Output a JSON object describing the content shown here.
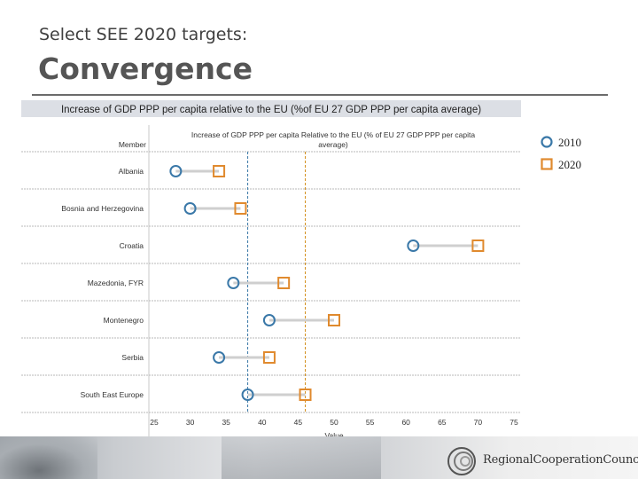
{
  "slide": {
    "subtitle": "Select SEE 2020 targets:",
    "title": "Convergence"
  },
  "chart_data": {
    "type": "dot-plot",
    "title": "Increase of GDP PPP per capita relative to the EU (%of EU 27 GDP PPP per capita average)",
    "column_headers": {
      "row_header": "Member",
      "measure_header_line1": "Increase of GDP PPP per capita Relative to the EU (% of EU 27 GDP PPP per capita",
      "measure_header_line2": "average)"
    },
    "categories": [
      "Albania",
      "Bosnia and Herzegovina",
      "Croatia",
      "Mazedonia, FYR",
      "Montenegro",
      "Serbia",
      "South East Europe"
    ],
    "series": [
      {
        "name": "2010",
        "marker": "circle",
        "color": "#3a78a8",
        "values": [
          28,
          30,
          61,
          36,
          41,
          34,
          38
        ]
      },
      {
        "name": "2020",
        "marker": "square",
        "color": "#e08a2e",
        "values": [
          34,
          37,
          70,
          43,
          50,
          41,
          46
        ]
      }
    ],
    "reference_lines": [
      {
        "value": 38,
        "color": "#3a78a8",
        "style": "dashed"
      },
      {
        "value": 46,
        "color": "#d4901e",
        "style": "dashed"
      }
    ],
    "xlabel": "Value",
    "xlim": [
      25,
      75
    ],
    "xticks": [
      "25",
      "30",
      "35",
      "40",
      "45",
      "50",
      "55",
      "60",
      "65",
      "70",
      "75"
    ],
    "grid": "horizontal",
    "legend_position": "right"
  },
  "legend": {
    "items": [
      {
        "label": "2010",
        "marker": "circle",
        "color": "#3a78a8"
      },
      {
        "label": "2020",
        "marker": "square",
        "color": "#e08a2e"
      }
    ]
  },
  "footer": {
    "org_name": "RegionalCooperationCouncil"
  }
}
